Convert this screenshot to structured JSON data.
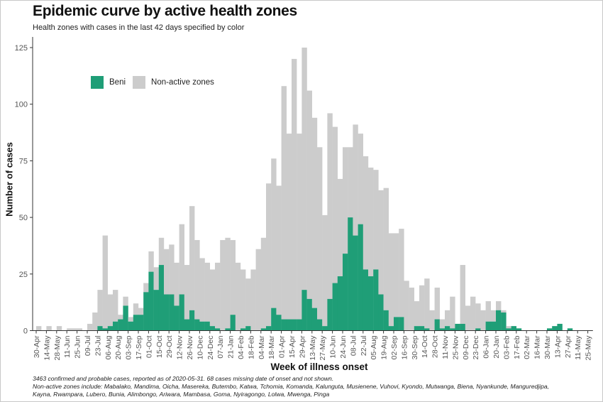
{
  "header": {
    "title": "Epidemic curve by active health zones",
    "subtitle": "Health zones with cases in the last 42 days specified by color"
  },
  "footnote": {
    "line1": "3463 confirmed and probable cases, reported as of 2020-05-31. 68 cases missing date of onset and not shown.",
    "line2": "Non-active zones include: Mabalako, Mandima, Oicha, Masereka, Butembo, Katwa, Tchomia, Komanda, Kalunguta, Musienene, Vuhovi, Kyondo, Mutwanga, Biena, Nyankunde, Manguredjipa,",
    "line3": "Kayna, Rwampara, Lubero, Bunia, Alimbongo, Ariwara, Mambasa, Goma, Nyiragongo, Lolwa, Mwenga, Pinga"
  },
  "colors": {
    "beni": "#1f9e77",
    "non_active": "#cccccc",
    "axis": "#333333",
    "tick_text": "#555555"
  },
  "chart_data": {
    "type": "bar",
    "stacked": true,
    "title": "Epidemic curve by active health zones",
    "subtitle": "Health zones with cases in the last 42 days specified by color",
    "xlabel": "Week of illness onset",
    "ylabel": "Number of cases",
    "ylim": [
      0,
      125
    ],
    "yticks": [
      0,
      25,
      50,
      75,
      100,
      125
    ],
    "legend_position": "top-left",
    "grid": false,
    "x_tick_labels": [
      "30-Apr",
      "14-May",
      "28-May",
      "11-Jun",
      "25-Jun",
      "09-Jul",
      "23-Jul",
      "06-Aug",
      "20-Aug",
      "03-Sep",
      "17-Sep",
      "01-Oct",
      "15-Oct",
      "29-Oct",
      "12-Nov",
      "26-Nov",
      "10-Dec",
      "24-Dec",
      "07-Jan",
      "21-Jan",
      "04-Feb",
      "18-Feb",
      "04-Mar",
      "18-Mar",
      "01-Apr",
      "15-Apr",
      "29-Apr",
      "13-May",
      "27-May",
      "10-Jun",
      "24-Jun",
      "08-Jul",
      "22-Jul",
      "05-Aug",
      "19-Aug",
      "02-Sep",
      "16-Sep",
      "30-Sep",
      "14-Oct",
      "28-Oct",
      "11-Nov",
      "25-Nov",
      "09-Dec",
      "23-Dec",
      "06-Jan",
      "20-Jan",
      "03-Feb",
      "17-Feb",
      "02-Mar",
      "16-Mar",
      "30-Mar",
      "13-Apr",
      "27-Apr",
      "11-May",
      "25-May"
    ],
    "x_tick_every_weeks": 2,
    "n_weeks": 109,
    "series": [
      {
        "name": "Beni",
        "color": "#1f9e77",
        "values": [
          0,
          0,
          0,
          0,
          0,
          0,
          0,
          0,
          0,
          0,
          0,
          0,
          2,
          1,
          2,
          4,
          5,
          11,
          4,
          7,
          7,
          17,
          26,
          18,
          29,
          16,
          16,
          11,
          16,
          5,
          9,
          5,
          4,
          4,
          2,
          1,
          0,
          1,
          7,
          0,
          1,
          2,
          0,
          0,
          1,
          2,
          10,
          7,
          5,
          5,
          5,
          5,
          18,
          14,
          10,
          5,
          2,
          14,
          21,
          24,
          34,
          50,
          42,
          47,
          27,
          24,
          27,
          16,
          9,
          2,
          6,
          6,
          0,
          0,
          2,
          2,
          1,
          0,
          5,
          1,
          2,
          1,
          3,
          3,
          0,
          0,
          1,
          0,
          4,
          4,
          9,
          8,
          1,
          2,
          1,
          0,
          0,
          0,
          0,
          0,
          1,
          2,
          3,
          0,
          1,
          0,
          0,
          0,
          0
        ]
      },
      {
        "name": "Non-active zones",
        "color": "#cccccc",
        "values": [
          2,
          0,
          2,
          0,
          2,
          0,
          1,
          1,
          1,
          0,
          3,
          8,
          16,
          41,
          14,
          14,
          2,
          4,
          2,
          5,
          3,
          4,
          9,
          10,
          12,
          20,
          22,
          19,
          31,
          24,
          46,
          35,
          28,
          26,
          25,
          29,
          40,
          40,
          33,
          30,
          26,
          21,
          27,
          36,
          40,
          63,
          66,
          57,
          103,
          82,
          115,
          82,
          107,
          92,
          84,
          76,
          49,
          82,
          69,
          43,
          47,
          31,
          49,
          40,
          50,
          48,
          44,
          46,
          54,
          41,
          37,
          39,
          22,
          19,
          11,
          18,
          22,
          9,
          14,
          4,
          7,
          14,
          0,
          26,
          11,
          15,
          11,
          9,
          9,
          5,
          4,
          1,
          1,
          0,
          0,
          0,
          0,
          0,
          0,
          0,
          0,
          0,
          0,
          0,
          0,
          0,
          0,
          0,
          0
        ]
      }
    ]
  }
}
